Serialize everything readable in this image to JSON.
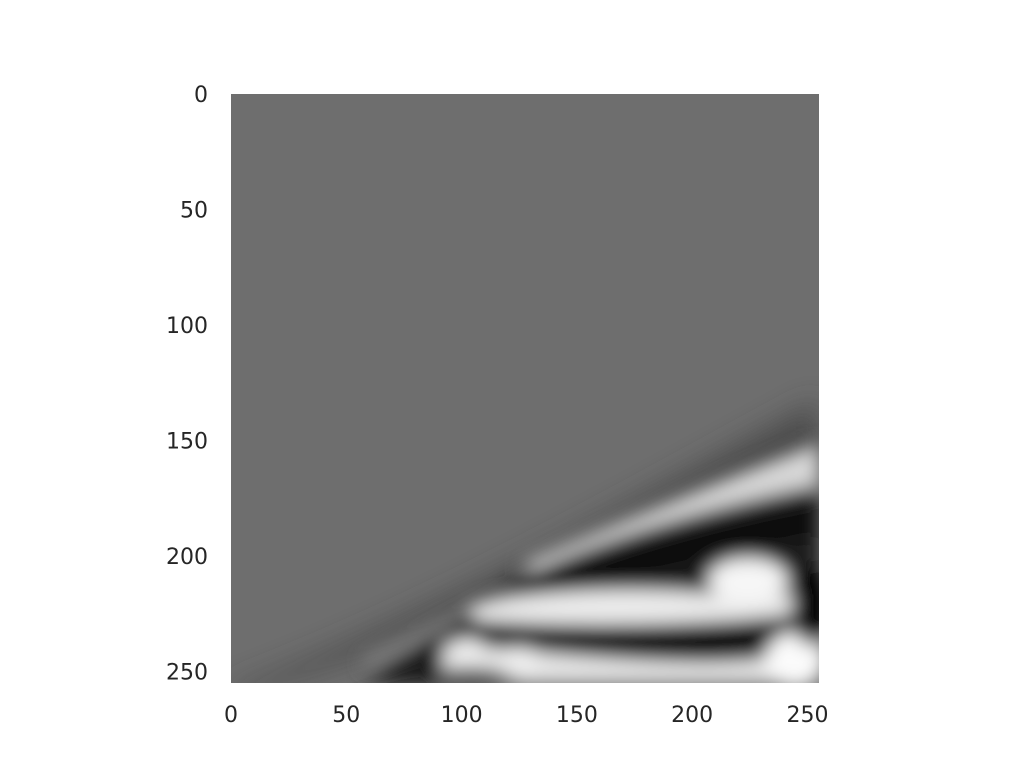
{
  "chart_data": {
    "type": "heatmap",
    "title": "",
    "xlabel": "",
    "ylabel": "",
    "colormap": "gray",
    "grid": false,
    "legend": "none",
    "xlim": [
      0,
      255
    ],
    "ylim": [
      255,
      0
    ],
    "y_axis_inverted": true,
    "x_ticks": [
      "0",
      "50",
      "100",
      "150",
      "200",
      "250"
    ],
    "y_ticks": [
      "0",
      "50",
      "100",
      "150",
      "200",
      "250"
    ],
    "background_value_hex": "#6e6e6e",
    "structure": "uniform mid-gray field above a diagonal boundary running from about (0, 255) to (255, 140); below it, alternating black and white bands (a wavefront interference pattern) fanning out toward the lower right"
  }
}
